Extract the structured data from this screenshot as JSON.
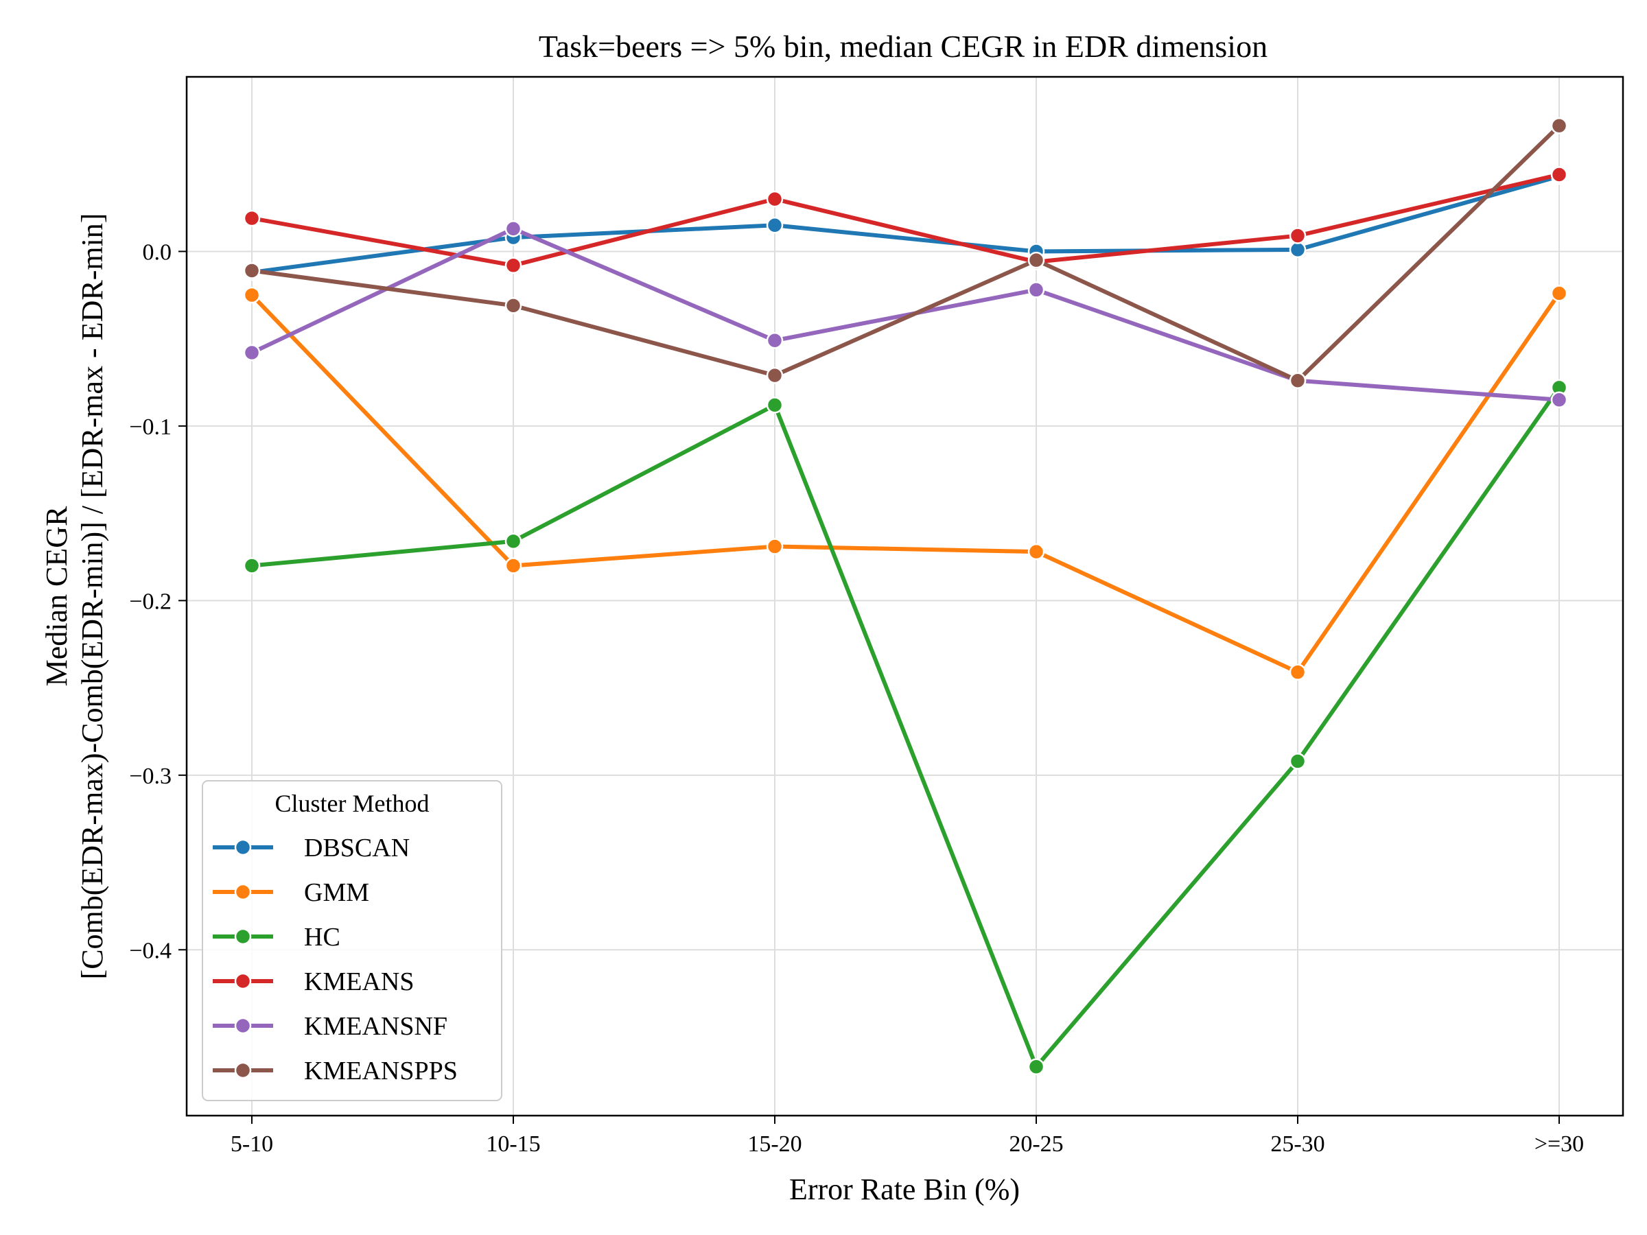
{
  "chart_data": {
    "type": "line",
    "title": "Task=beers => 5% bin, median CEGR in EDR dimension",
    "xlabel": "Error Rate Bin (%)",
    "ylabel": [
      "Median CEGR",
      "[Comb(EDR-max)-Comb(EDR-min)] / [EDR-max - EDR-min]"
    ],
    "categories": [
      "5-10",
      "10-15",
      "15-20",
      "20-25",
      "25-30",
      ">=30"
    ],
    "ylim": [
      -0.495,
      0.1
    ],
    "yticks": [
      0.0,
      -0.1,
      -0.2,
      -0.3,
      -0.4
    ],
    "ytick_labels": [
      "0.0",
      "−0.1",
      "−0.2",
      "−0.3",
      "−0.4"
    ],
    "grid": true,
    "legend": {
      "title": "Cluster Method",
      "placement": "lower-left"
    },
    "series": [
      {
        "name": "DBSCAN",
        "color": "#1f77b4",
        "values": [
          -0.012,
          0.008,
          0.015,
          0.0,
          0.001,
          0.043
        ]
      },
      {
        "name": "GMM",
        "color": "#ff7f0e",
        "values": [
          -0.025,
          -0.18,
          -0.169,
          -0.172,
          -0.241,
          -0.024
        ]
      },
      {
        "name": "HC",
        "color": "#2ca02c",
        "values": [
          -0.18,
          -0.166,
          -0.088,
          -0.467,
          -0.292,
          -0.078
        ]
      },
      {
        "name": "KMEANS",
        "color": "#d62728",
        "values": [
          0.019,
          -0.008,
          0.03,
          -0.006,
          0.009,
          0.044
        ]
      },
      {
        "name": "KMEANSNF",
        "color": "#9467bd",
        "values": [
          -0.058,
          0.013,
          -0.051,
          -0.022,
          -0.074,
          -0.085
        ]
      },
      {
        "name": "KMEANSPPS",
        "color": "#8c564b",
        "values": [
          -0.011,
          -0.031,
          -0.071,
          -0.005,
          -0.074,
          0.072
        ]
      }
    ]
  }
}
